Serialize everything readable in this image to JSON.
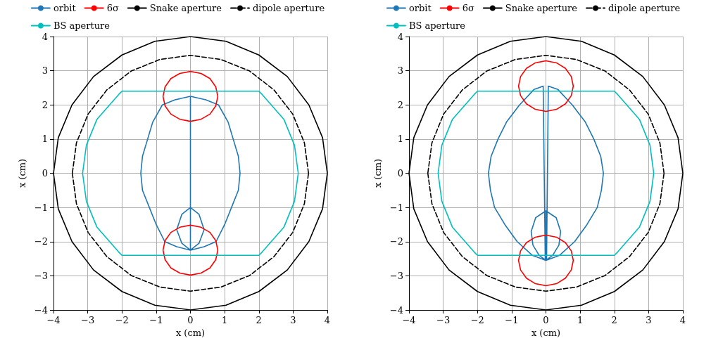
{
  "chart_data": [
    {
      "type": "line",
      "xlabel": "x (cm)",
      "ylabel": "x (cm)",
      "xlim": [
        -4,
        4
      ],
      "ylim": [
        -4,
        4
      ],
      "xticks": [
        {
          "value": -4,
          "label": "−4"
        },
        {
          "value": -3,
          "label": "−3"
        },
        {
          "value": -2,
          "label": "−2"
        },
        {
          "value": -1,
          "label": "−1"
        },
        0,
        1,
        2,
        3,
        4
      ],
      "yticks": [
        {
          "value": -4,
          "label": "−4"
        },
        {
          "value": -3,
          "label": "−3"
        },
        {
          "value": -2,
          "label": "−2"
        },
        {
          "value": -1,
          "label": "−1"
        },
        0,
        1,
        2,
        3,
        4
      ],
      "grid": true,
      "legend": "top",
      "marker": "none",
      "series": [
        {
          "name": "orbit",
          "color": "#1f77b4",
          "x": [
            0,
            0,
            null,
            0,
            0.45,
            0.82,
            1.1,
            1.25,
            1.4,
            1.45,
            null,
            1.45,
            1.4,
            1.2,
            1.0,
            0.75,
            0.4,
            0,
            null,
            0,
            -0.4,
            -0.75,
            -1.0,
            -1.2,
            -1.4,
            -1.45,
            null,
            -1.45,
            -1.4,
            -1.25,
            -1.1,
            -0.82,
            -0.45,
            0,
            null,
            0,
            0.25,
            0.4,
            null,
            0.4,
            0.25,
            0,
            null,
            0,
            -0.25,
            -0.4,
            null,
            -0.4,
            -0.25,
            0
          ],
          "values": [
            2.25,
            -2.25,
            null,
            2.25,
            2.15,
            2.0,
            1.5,
            1.0,
            0.5,
            0,
            null,
            0,
            -0.5,
            -1.0,
            -1.5,
            -2.0,
            -2.15,
            -2.25,
            null,
            -2.25,
            -2.15,
            -2.0,
            -1.5,
            -1.0,
            -0.5,
            0,
            null,
            0,
            0.5,
            1.0,
            1.5,
            2.0,
            2.15,
            2.25,
            null,
            -1,
            -1.2,
            -1.65,
            null,
            -1.65,
            -2.05,
            -2.25,
            null,
            -2.25,
            -2.05,
            -1.65,
            null,
            -1.65,
            -1.2,
            -1
          ]
        },
        {
          "name": "6σ",
          "color": "#ff0000",
          "x": [
            0.8,
            0.74,
            0.57,
            0.31,
            0,
            -0.31,
            -0.57,
            -0.74,
            -0.8,
            null,
            -0.8,
            -0.74,
            -0.57,
            -0.31,
            0,
            0.31,
            0.57,
            0.74,
            0.8,
            null,
            0.8,
            0.74,
            0.57,
            0.31,
            0,
            -0.31,
            -0.57,
            -0.74,
            -0.8,
            null,
            -0.8,
            -0.74,
            -0.57,
            -0.31,
            0,
            0.31,
            0.57,
            0.74,
            0.8
          ],
          "values": [
            2.25,
            2.53,
            2.77,
            2.92,
            2.98,
            2.92,
            2.77,
            2.53,
            2.25,
            null,
            2.25,
            1.97,
            1.73,
            1.58,
            1.52,
            1.58,
            1.73,
            1.97,
            2.25,
            null,
            -2.25,
            -1.97,
            -1.73,
            -1.58,
            -1.52,
            -1.58,
            -1.73,
            -1.97,
            -2.25,
            null,
            -2.25,
            -2.53,
            -2.77,
            -2.92,
            -2.98,
            -2.92,
            -2.77,
            -2.53,
            -2.25
          ]
        },
        {
          "name": "Snake aperture",
          "color": "#000000",
          "line_style": "solid",
          "x": [
            4,
            3.86,
            3.46,
            2.83,
            2,
            1.04,
            0,
            -1.04,
            -2,
            -2.83,
            -3.46,
            -3.86,
            -4,
            null,
            -4,
            -3.86,
            -3.46,
            -2.83,
            -2,
            -1.04,
            0,
            1.04,
            2,
            2.83,
            3.46,
            3.86,
            4
          ],
          "values": [
            0,
            1.04,
            2,
            2.83,
            3.46,
            3.86,
            4,
            3.86,
            3.46,
            2.83,
            2,
            1.04,
            0,
            null,
            0,
            -1.04,
            -2,
            -2.83,
            -3.46,
            -3.86,
            -4,
            -3.86,
            -3.46,
            -2.83,
            -2,
            -1.04,
            0
          ]
        },
        {
          "name": "dipole aperture",
          "color": "#000000",
          "line_style": "dashed",
          "x": [
            3.45,
            3.33,
            2.99,
            2.44,
            1.73,
            0.89,
            0,
            -0.89,
            -1.73,
            -2.44,
            -2.99,
            -3.33,
            -3.45,
            null,
            -3.45,
            -3.33,
            -2.99,
            -2.44,
            -1.73,
            -0.89,
            0,
            0.89,
            1.73,
            2.44,
            2.99,
            3.33,
            3.45
          ],
          "values": [
            0,
            0.89,
            1.73,
            2.44,
            2.99,
            3.33,
            3.45,
            3.33,
            2.99,
            2.44,
            1.73,
            0.89,
            0,
            null,
            0,
            -0.89,
            -1.73,
            -2.44,
            -2.99,
            -3.33,
            -3.45,
            -3.33,
            -2.99,
            -2.44,
            -1.73,
            -0.89,
            0
          ]
        },
        {
          "name": "BS aperture",
          "color": "#00bfbf",
          "x": [
            -3.15,
            -3.04,
            -2.73,
            -2.1,
            -2,
            2,
            2.1,
            2.73,
            3.04,
            3.15,
            null,
            3.15,
            3.04,
            2.73,
            2.1,
            2,
            -2,
            -2.1,
            -2.73,
            -3.04,
            -3.15
          ],
          "values": [
            0,
            0.82,
            1.58,
            2.3,
            2.4,
            2.4,
            2.3,
            1.58,
            0.82,
            0,
            null,
            0,
            -0.82,
            -1.58,
            -2.3,
            -2.4,
            -2.4,
            -2.3,
            -1.58,
            -0.82,
            0
          ]
        }
      ]
    },
    {
      "type": "line",
      "xlabel": "x (cm)",
      "ylabel": "x (cm)",
      "xlim": [
        -4,
        4
      ],
      "ylim": [
        -4,
        4
      ],
      "xticks": [
        {
          "value": -4,
          "label": "−4"
        },
        {
          "value": -3,
          "label": "−3"
        },
        {
          "value": -2,
          "label": "−2"
        },
        {
          "value": -1,
          "label": "−1"
        },
        0,
        1,
        2,
        3,
        4
      ],
      "yticks": [
        {
          "value": -4,
          "label": "−4"
        },
        {
          "value": -3,
          "label": "−3"
        },
        {
          "value": -2,
          "label": "−2"
        },
        {
          "value": -1,
          "label": "−1"
        },
        0,
        1,
        2,
        3,
        4
      ],
      "grid": true,
      "legend": "top",
      "marker": "none",
      "series": [
        {
          "name": "orbit",
          "color": "#1f77b4",
          "x": [
            0.07,
            0.35,
            0.77,
            1.15,
            1.4,
            1.6,
            1.68,
            null,
            1.68,
            1.62,
            1.5,
            1.2,
            0.84,
            0.4,
            0,
            null,
            0,
            -0.4,
            -0.84,
            -1.2,
            -1.5,
            -1.62,
            -1.68,
            null,
            -1.68,
            -1.6,
            -1.4,
            -1.15,
            -0.77,
            -0.35,
            -0.08,
            null,
            -0.08,
            -0.02,
            null,
            0.02,
            0.07,
            null,
            0,
            0.3,
            0.43,
            null,
            0.43,
            0.38,
            0.2,
            0,
            null,
            0,
            -0.2,
            -0.38,
            -0.43,
            null,
            -0.43,
            -0.3,
            0,
            null,
            0,
            0
          ],
          "values": [
            2.55,
            2.45,
            2.0,
            1.5,
            1.0,
            0.5,
            0,
            null,
            0,
            -0.5,
            -1.0,
            -1.5,
            -2.0,
            -2.4,
            -2.55,
            null,
            -2.55,
            -2.4,
            -2.0,
            -1.5,
            -1.0,
            -0.5,
            0,
            null,
            0,
            0.5,
            1.0,
            1.5,
            2.0,
            2.45,
            2.55,
            null,
            2.55,
            -2.5,
            null,
            -2.5,
            2.55,
            null,
            -1.1,
            -1.3,
            -1.7,
            null,
            -1.7,
            -2.1,
            -2.4,
            -2.55,
            null,
            -2.55,
            -2.4,
            -2.1,
            -1.7,
            null,
            -1.7,
            -1.3,
            -1.1,
            null,
            -1.1,
            -2.55
          ]
        },
        {
          "name": "6σ",
          "color": "#ff0000",
          "x": [
            0.8,
            0.74,
            0.57,
            0.31,
            0,
            -0.31,
            -0.57,
            -0.74,
            -0.8,
            null,
            -0.8,
            -0.74,
            -0.57,
            -0.31,
            0,
            0.31,
            0.57,
            0.74,
            0.8,
            null,
            0.8,
            0.74,
            0.57,
            0.31,
            0,
            -0.31,
            -0.57,
            -0.74,
            -0.8,
            null,
            -0.8,
            -0.74,
            -0.57,
            -0.31,
            0,
            0.31,
            0.57,
            0.74,
            0.8
          ],
          "values": [
            2.55,
            2.83,
            3.07,
            3.23,
            3.29,
            3.23,
            3.07,
            2.83,
            2.55,
            null,
            2.55,
            2.27,
            2.03,
            1.87,
            1.81,
            1.87,
            2.03,
            2.27,
            2.55,
            null,
            -2.55,
            -2.27,
            -2.03,
            -1.87,
            -1.81,
            -1.87,
            -2.03,
            -2.27,
            -2.55,
            null,
            -2.55,
            -2.83,
            -3.07,
            -3.23,
            -3.29,
            -3.23,
            -3.07,
            -2.83,
            -2.55
          ]
        },
        {
          "name": "Snake aperture",
          "color": "#000000",
          "line_style": "solid",
          "x": [
            4,
            3.86,
            3.46,
            2.83,
            2,
            1.04,
            0,
            -1.04,
            -2,
            -2.83,
            -3.46,
            -3.86,
            -4,
            null,
            -4,
            -3.86,
            -3.46,
            -2.83,
            -2,
            -1.04,
            0,
            1.04,
            2,
            2.83,
            3.46,
            3.86,
            4
          ],
          "values": [
            0,
            1.04,
            2,
            2.83,
            3.46,
            3.86,
            4,
            3.86,
            3.46,
            2.83,
            2,
            1.04,
            0,
            null,
            0,
            -1.04,
            -2,
            -2.83,
            -3.46,
            -3.86,
            -4,
            -3.86,
            -3.46,
            -2.83,
            -2,
            -1.04,
            0
          ]
        },
        {
          "name": "dipole aperture",
          "color": "#000000",
          "line_style": "dashed",
          "x": [
            3.45,
            3.33,
            2.99,
            2.44,
            1.73,
            0.89,
            0,
            -0.89,
            -1.73,
            -2.44,
            -2.99,
            -3.33,
            -3.45,
            null,
            -3.45,
            -3.33,
            -2.99,
            -2.44,
            -1.73,
            -0.89,
            0,
            0.89,
            1.73,
            2.44,
            2.99,
            3.33,
            3.45
          ],
          "values": [
            0,
            0.89,
            1.73,
            2.44,
            2.99,
            3.33,
            3.45,
            3.33,
            2.99,
            2.44,
            1.73,
            0.89,
            0,
            null,
            0,
            -0.89,
            -1.73,
            -2.44,
            -2.99,
            -3.33,
            -3.45,
            -3.33,
            -2.99,
            -2.44,
            -1.73,
            -0.89,
            0
          ]
        },
        {
          "name": "BS aperture",
          "color": "#00bfbf",
          "x": [
            -3.15,
            -3.04,
            -2.73,
            -2.1,
            -2,
            2,
            2.1,
            2.73,
            3.04,
            3.15,
            null,
            3.15,
            3.04,
            2.73,
            2.1,
            2,
            -2,
            -2.1,
            -2.73,
            -3.04,
            -3.15
          ],
          "values": [
            0,
            0.82,
            1.58,
            2.3,
            2.4,
            2.4,
            2.3,
            1.58,
            0.82,
            0,
            null,
            0,
            -0.82,
            -1.58,
            -2.3,
            -2.4,
            -2.4,
            -2.3,
            -1.58,
            -0.82,
            0
          ]
        }
      ]
    }
  ]
}
